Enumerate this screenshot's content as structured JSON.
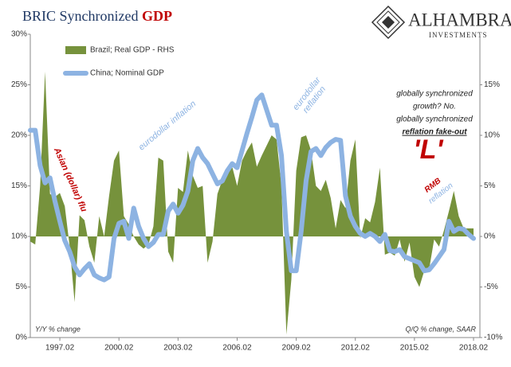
{
  "chart_data": {
    "type": "area-line",
    "title_parts": [
      "BRIC Synchronized",
      "GDP"
    ],
    "logo": {
      "name": "ALHAMBRA",
      "tagline": "INVESTMENTS"
    },
    "y_axis_note": "Y/Y % change",
    "y2_axis_note": "Q/Q % change, SAAR",
    "categories": [
      null,
      null,
      null,
      null,
      null,
      null,
      "1997.02",
      null,
      null,
      null,
      null,
      null,
      null,
      null,
      null,
      null,
      null,
      null,
      "2000.02",
      null,
      null,
      null,
      null,
      null,
      null,
      null,
      null,
      null,
      null,
      null,
      "2003.02",
      null,
      null,
      null,
      null,
      null,
      null,
      null,
      null,
      null,
      null,
      null,
      "2006.02",
      null,
      null,
      null,
      null,
      null,
      null,
      null,
      null,
      null,
      null,
      null,
      "2009.02",
      null,
      null,
      null,
      null,
      null,
      null,
      null,
      null,
      null,
      null,
      null,
      "2012.02",
      null,
      null,
      null,
      null,
      null,
      null,
      null,
      null,
      null,
      null,
      null,
      "2015.02",
      null,
      null,
      null,
      null,
      null,
      null,
      null,
      null,
      null,
      null,
      null,
      "2018.02"
    ],
    "series": [
      {
        "name": "Brazil; Real GDP - RHS",
        "color": "#76923c",
        "axis": "y2",
        "kind": "area",
        "values": [
          -0.5,
          -0.8,
          5,
          16.3,
          4.2,
          3.9,
          4.3,
          3,
          -1,
          -6.5,
          2.1,
          1.6,
          -1,
          -2.6,
          2,
          0,
          4,
          7.5,
          8.5,
          2,
          1.2,
          0,
          -0.8,
          -1.2,
          -0.8,
          1,
          7.8,
          7.5,
          -1.5,
          -2.6,
          4.8,
          4.4,
          8.5,
          6,
          4.8,
          5,
          -2.6,
          -0.5,
          4.2,
          5.6,
          6.5,
          6.9,
          5,
          7.5,
          8.5,
          9.3,
          6.9,
          8,
          9,
          10,
          9.6,
          5,
          -9.7,
          -4.3,
          6.5,
          9.8,
          10,
          8.5,
          5,
          4.5,
          5.6,
          3.8,
          0.8,
          3.6,
          2.8,
          7.5,
          9.6,
          -0.2,
          1.8,
          1.4,
          3.4,
          6.8,
          -1.8,
          -1.6,
          -1.9,
          -0.3,
          -2.5,
          -0.6,
          -4,
          -5,
          -3.4,
          -3.2,
          -0.3,
          -1,
          0.6,
          2.5,
          4.5,
          2,
          0.8,
          0.8,
          0.8
        ]
      },
      {
        "name": "China; Nominal GDP",
        "color": "#8db3e2",
        "axis": "y",
        "kind": "line",
        "values": [
          20.5,
          20.5,
          17,
          15.3,
          15.8,
          13.5,
          11.5,
          9.6,
          8.5,
          7,
          6.2,
          6.8,
          7.3,
          6.2,
          5.9,
          5.7,
          6,
          9.8,
          11.3,
          11.5,
          9.8,
          12.8,
          11,
          9.8,
          9,
          9.4,
          10.2,
          10.2,
          12.5,
          13.2,
          12.3,
          13.1,
          14.5,
          17.5,
          18.7,
          17.8,
          17.2,
          16.2,
          15.2,
          15.5,
          16.5,
          17.2,
          16.8,
          18.5,
          20.2,
          21.8,
          23.5,
          24,
          22.5,
          21,
          21,
          18,
          10.5,
          6.6,
          6.6,
          10.5,
          15.5,
          18.4,
          18.7,
          18,
          18.8,
          19.3,
          19.6,
          19.5,
          14,
          12,
          11,
          10.3,
          10,
          10.3,
          10,
          9.5,
          10.2,
          8.6,
          8.5,
          8.7,
          8,
          7.8,
          7.6,
          7.4,
          6.6,
          6.7,
          7.3,
          8,
          8.7,
          11.5,
          10.5,
          10.8,
          10.7,
          10.2,
          9.8
        ]
      }
    ],
    "ylim": [
      0,
      30
    ],
    "yticks": [
      {
        "value": 0,
        "label": "0%"
      },
      {
        "value": 5,
        "label": "5%"
      },
      {
        "value": 10,
        "label": "10%"
      },
      {
        "value": 15,
        "label": "15%"
      },
      {
        "value": 20,
        "label": "20%"
      },
      {
        "value": 25,
        "label": "25%"
      },
      {
        "value": 30,
        "label": "30%"
      }
    ],
    "y2lim": [
      -10,
      20
    ],
    "y2ticks": [
      {
        "value": -10,
        "label": "-10%"
      },
      {
        "value": -5,
        "label": "-5%"
      },
      {
        "value": 0,
        "label": "0%"
      },
      {
        "value": 5,
        "label": "5%"
      },
      {
        "value": 10,
        "label": "10%"
      },
      {
        "value": 15,
        "label": "15%"
      }
    ],
    "legend": "top-left",
    "annotations": [
      {
        "lines": [
          "Asian (dollar) flu"
        ],
        "color": "#c00000"
      },
      {
        "lines": [
          "eurodollar inflation"
        ],
        "color": "#8db3e2"
      },
      {
        "lines": [
          "eurodollar",
          "reflation"
        ],
        "color": "#8db3e2"
      },
      {
        "lines": [
          "globally synchronized",
          "growth?  No.",
          "globally synchronized",
          "reflation fake-out"
        ],
        "color": "#222"
      },
      {
        "lines": [
          "'L'"
        ],
        "color": "#c00000"
      },
      {
        "lines": [
          "RMB"
        ],
        "color": "#c00000"
      },
      {
        "lines": [
          "reflation"
        ],
        "color": "#8db3e2"
      }
    ]
  }
}
